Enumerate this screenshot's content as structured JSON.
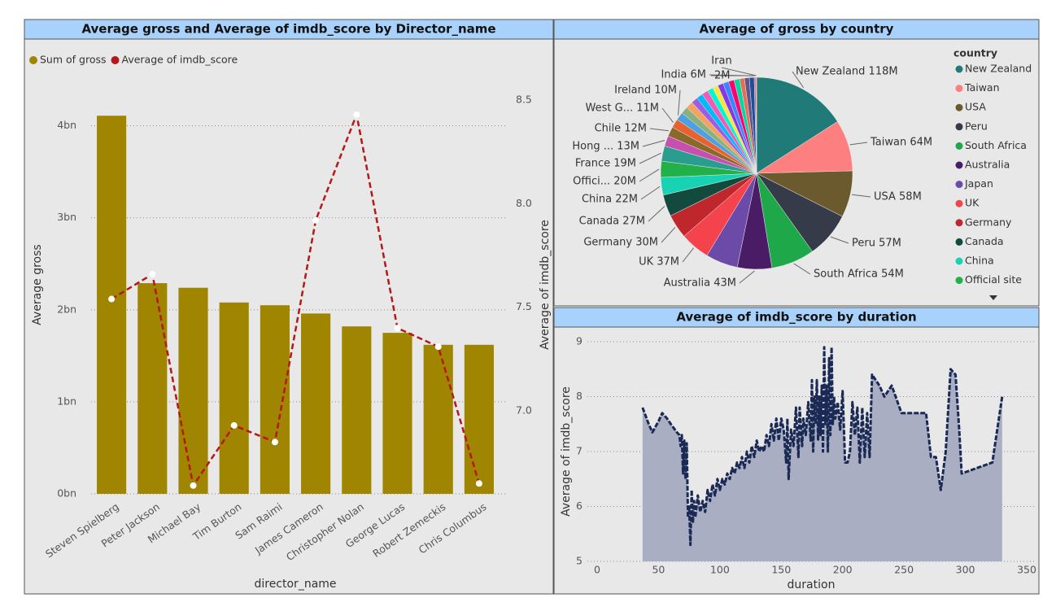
{
  "chart_data": [
    {
      "type": "combo",
      "title": "Average gross and Average of imdb_score by Director_name",
      "xlabel": "director_name",
      "ylabel": "Average gross",
      "y2label": "Average of imdb_score",
      "legend": "top-left",
      "categories": [
        "Steven Spielberg",
        "Peter Jackson",
        "Michael Bay",
        "Tim Burton",
        "Sam Raimi",
        "James Cameron",
        "Christopher Nolan",
        "George Lucas",
        "Robert Zemeckis",
        "Chris Columbus"
      ],
      "series": [
        {
          "name": "Sum of gross",
          "type": "bar",
          "color": "#a08600",
          "values": [
            4110000000,
            2290000000,
            2240000000,
            2080000000,
            2050000000,
            1960000000,
            1820000000,
            1750000000,
            1620000000,
            1620000000
          ]
        },
        {
          "name": "Average of imdb_score",
          "type": "line",
          "axis": "y2",
          "color": "#b41818",
          "values": [
            7.54,
            7.66,
            6.64,
            6.93,
            6.85,
            7.92,
            8.43,
            7.4,
            7.31,
            6.65
          ]
        }
      ],
      "ylim": [
        0,
        4280000000
      ],
      "yticks": [
        {
          "value": 0,
          "label": "0bn"
        },
        {
          "value": 1000000000,
          "label": "1bn"
        },
        {
          "value": 2000000000,
          "label": "2bn"
        },
        {
          "value": 3000000000,
          "label": "3bn"
        },
        {
          "value": 4000000000,
          "label": "4bn"
        }
      ],
      "y2lim": [
        6.6,
        8.5
      ],
      "y2ticks": [
        {
          "value": 7,
          "label": "7.0"
        },
        7.5,
        {
          "value": 8,
          "label": "8.0"
        },
        8.5
      ],
      "grid": true
    },
    {
      "type": "pie",
      "title": "Average of gross by country",
      "legend_title": "country",
      "categories": [
        "New Zealand",
        "Taiwan",
        "USA",
        "Peru",
        "South Africa",
        "Australia",
        "Japan",
        "UK",
        "Germany",
        "Canada",
        "China",
        "Official site",
        "France",
        "Hong ...",
        "Chile",
        "West G...",
        "Ireland",
        null,
        null,
        null,
        null,
        null,
        null,
        null,
        null,
        null,
        null,
        null,
        null,
        null,
        "India",
        null,
        "Iran"
      ],
      "values": [
        118,
        64,
        58,
        57,
        54,
        43,
        40,
        37,
        30,
        27,
        22,
        20,
        19,
        13,
        12,
        11,
        10,
        9,
        9,
        8,
        8,
        8,
        7,
        7,
        7,
        7,
        7,
        7,
        6,
        6,
        6,
        2,
        1
      ],
      "value_labels": [
        "New Zealand 118M",
        "Taiwan 64M",
        "USA 58M",
        "Peru 57M",
        "South Africa 54M",
        "Australia 43M",
        null,
        "UK 37M",
        "Germany 30M",
        "Canada 27M",
        "China 22M",
        "Offici... 20M",
        "France 19M",
        "Hong ... 13M",
        "Chile 12M",
        "West G... 11M",
        "Ireland 10M",
        null,
        null,
        null,
        null,
        null,
        null,
        null,
        null,
        null,
        null,
        null,
        null,
        null,
        "India 6M",
        "2M",
        "Iran"
      ],
      "colors": [
        "#1f7a78",
        "#fd7f7f",
        "#6b5a2d",
        "#363b4a",
        "#1ea84a",
        "#4a1c66",
        "#6b4aa8",
        "#f5434e",
        "#c0272d",
        "#124a3e",
        "#17d3b3",
        "#22b04a",
        "#2a9d8f",
        "#c64fb0",
        "#8a6a2a",
        "#e8622f",
        "#4ea1e0",
        "#8ab17d",
        "#f4a261",
        "#9b5de5",
        "#00bbf9",
        "#f15bb5",
        "#00f5d4",
        "#fee440",
        "#8338ec",
        "#3a86ff",
        "#ff006e",
        "#06d6a0",
        "#e76f51",
        "#5e548e",
        "#1b4f9c",
        "#ef476f",
        "#a89a5a"
      ]
    },
    {
      "type": "area",
      "title": "Average of imdb_score by duration",
      "xlabel": "duration",
      "ylabel": "Average of imdb_score",
      "color": "#1b2a55",
      "fill_color": "#a9aec2",
      "x": [
        37,
        42,
        45,
        50,
        53,
        57,
        60,
        65,
        67,
        68,
        69,
        70,
        71,
        72,
        73,
        74,
        75,
        76,
        77,
        78,
        79,
        80,
        82,
        84,
        86,
        88,
        90,
        92,
        94,
        96,
        98,
        100,
        102,
        104,
        106,
        108,
        110,
        112,
        114,
        116,
        118,
        120,
        122,
        124,
        126,
        128,
        130,
        132,
        134,
        136,
        138,
        140,
        142,
        144,
        146,
        148,
        150,
        152,
        154,
        155,
        156,
        158,
        160,
        162,
        164,
        165,
        167,
        168,
        170,
        172,
        174,
        175,
        176,
        177,
        178,
        179,
        180,
        181,
        182,
        183,
        184,
        185,
        186,
        187,
        188,
        189,
        190,
        191,
        192,
        193,
        194,
        196,
        198,
        200,
        202,
        204,
        206,
        208,
        210,
        212,
        214,
        216,
        218,
        220,
        222,
        224,
        230,
        234,
        240,
        248,
        260,
        268,
        272,
        276,
        280,
        284,
        288,
        292,
        295,
        297,
        322,
        330
      ],
      "values": [
        7.8,
        7.5,
        7.35,
        7.55,
        7.7,
        7.6,
        7.5,
        7.35,
        7.3,
        7.1,
        7.3,
        6.6,
        7.2,
        6.5,
        7.15,
        5.8,
        6.0,
        5.3,
        6.3,
        5.7,
        6.1,
        5.8,
        6.2,
        5.9,
        6.1,
        5.9,
        6.3,
        6.1,
        6.4,
        6.2,
        6.5,
        6.3,
        6.5,
        6.4,
        6.6,
        6.5,
        6.7,
        6.6,
        6.8,
        6.7,
        6.9,
        6.7,
        7.0,
        6.8,
        7.1,
        6.9,
        7.2,
        7.0,
        7.1,
        7.0,
        7.3,
        7.1,
        7.5,
        7.2,
        7.6,
        7.2,
        7.6,
        7.4,
        6.8,
        7.6,
        6.5,
        7.4,
        7.1,
        7.8,
        6.9,
        7.8,
        7.1,
        7.6,
        7.3,
        7.9,
        7.2,
        8.3,
        7.0,
        8.0,
        7.5,
        8.3,
        7.2,
        8.0,
        7.3,
        8.2,
        7.0,
        8.9,
        7.5,
        8.2,
        7.0,
        8.7,
        7.3,
        8.9,
        7.5,
        8.0,
        7.6,
        7.9,
        7.4,
        8.1,
        6.8,
        6.8,
        7.0,
        7.9,
        7.3,
        7.8,
        6.8,
        7.8,
        6.9,
        7.7,
        6.9,
        8.4,
        8.2,
        8.0,
        8.2,
        7.7,
        7.7,
        7.7,
        6.9,
        6.9,
        6.3,
        7.0,
        8.5,
        8.4,
        7.4,
        6.6,
        6.8,
        8.0
      ],
      "xlim": [
        0,
        350
      ],
      "xticks": [
        0,
        50,
        100,
        150,
        200,
        250,
        300,
        350
      ],
      "ylim": [
        5,
        9
      ],
      "yticks": [
        5,
        6,
        7,
        8,
        9
      ],
      "grid": true
    }
  ]
}
